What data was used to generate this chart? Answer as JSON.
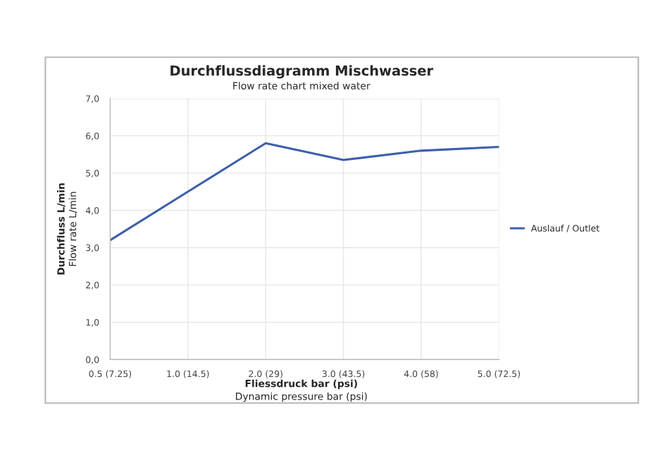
{
  "chart_data": {
    "type": "line",
    "title": "Durchflussdiagramm Mischwasser",
    "subtitle": "Flow rate chart mixed water",
    "xlabel": "Fliessdruck bar (psi)\nDynamic pressure bar (psi)",
    "ylabel": "Durchfluss L/min\nFlow rate L/min",
    "categories": [
      "0.5 (7.25)",
      "1.0 (14.5)",
      "2.0 (29)",
      "3.0 (43.5)",
      "4.0 (58)",
      "5.0 (72.5)"
    ],
    "series": [
      {
        "name": "Auslauf / Outlet",
        "color": "#3d5fad",
        "values": [
          3.2,
          4.5,
          5.8,
          5.35,
          5.6,
          5.7
        ]
      }
    ],
    "ylim": [
      0,
      7
    ],
    "yticks": [
      {
        "value": 0,
        "label": "0,0"
      },
      {
        "value": 1,
        "label": "1,0"
      },
      {
        "value": 2,
        "label": "2,0"
      },
      {
        "value": 3,
        "label": "3,0"
      },
      {
        "value": 4,
        "label": "4,0"
      },
      {
        "value": 5,
        "label": "5,0"
      },
      {
        "value": 6,
        "label": "6,0"
      },
      {
        "value": 7,
        "label": "7,0"
      }
    ],
    "grid": true,
    "legend": "right"
  }
}
